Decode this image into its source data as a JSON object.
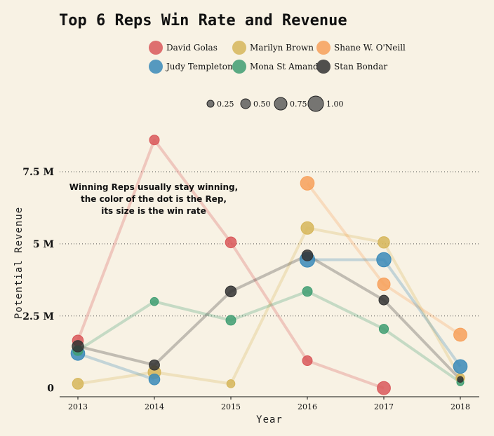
{
  "chart_data": {
    "type": "scatter",
    "title": "Top 6 Reps Win Rate and Revenue",
    "xlabel": "Year",
    "ylabel": "Potential Revenue",
    "x": [
      2013,
      2014,
      2015,
      2016,
      2017,
      2018
    ],
    "x_tick_labels": [
      "2013",
      "2014",
      "2015",
      "2016",
      "2017",
      "2018"
    ],
    "ylim": [
      -0.3,
      9.2
    ],
    "y_ticks": [
      0,
      2.5,
      5,
      7.5
    ],
    "y_tick_labels": [
      "0",
      "2.5 M",
      "5 M",
      "7.5 M"
    ],
    "size_legend": {
      "values": [
        0.25,
        0.5,
        0.75,
        1.0
      ],
      "labels": [
        "0.25",
        "0.50",
        "0.75",
        "1.00"
      ]
    },
    "annotation": [
      "Winning Reps usually stay winning,",
      "the color of the dot is the Rep,",
      "its size is the win rate"
    ],
    "grid": true,
    "legend_position": "top",
    "series": [
      {
        "name": "David Golas",
        "color": "#d9585a",
        "values": [
          1.65,
          8.6,
          5.05,
          0.95,
          0.0,
          null
        ],
        "win_rate": [
          0.6,
          0.5,
          0.6,
          0.5,
          0.8,
          null
        ]
      },
      {
        "name": "Marilyn Brown",
        "color": "#d6b65a",
        "values": [
          0.15,
          0.55,
          0.15,
          5.55,
          5.05,
          0.35
        ],
        "win_rate": [
          0.6,
          0.75,
          0.35,
          0.75,
          0.65,
          0.4
        ]
      },
      {
        "name": "Shane W. O'Neill",
        "color": "#f7a05a",
        "values": [
          null,
          null,
          null,
          7.1,
          3.6,
          1.85
        ],
        "win_rate": [
          null,
          null,
          null,
          0.85,
          0.75,
          0.8
        ]
      },
      {
        "name": "Judy Templeton",
        "color": "#3a8ab8",
        "values": [
          1.2,
          0.3,
          null,
          4.45,
          4.45,
          0.75
        ],
        "win_rate": [
          0.85,
          0.6,
          null,
          0.95,
          0.9,
          0.85
        ]
      },
      {
        "name": "Mona St Amand",
        "color": "#3f9e72",
        "values": [
          1.3,
          3.0,
          2.35,
          3.35,
          2.05,
          0.2
        ],
        "win_rate": [
          0.5,
          0.35,
          0.5,
          0.5,
          0.45,
          0.25
        ]
      },
      {
        "name": "Stan Bondar",
        "color": "#333333",
        "values": [
          1.45,
          0.8,
          3.35,
          4.6,
          3.05,
          0.3
        ],
        "win_rate": [
          0.65,
          0.55,
          0.6,
          0.6,
          0.5,
          0.15
        ]
      }
    ]
  }
}
